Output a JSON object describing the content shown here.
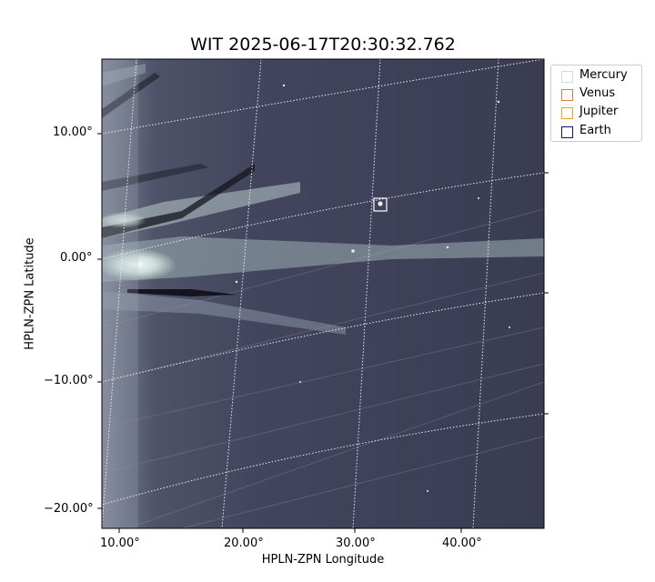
{
  "title": "WIT 2025-06-17T20:30:32.762",
  "xlabel": "HPLN-ZPN Longitude",
  "ylabel": "HPLN-ZPN Latitude",
  "x_ticks": [
    "10.00°",
    "20.00°",
    "30.00°",
    "40.00°"
  ],
  "y_ticks": [
    "10.00°",
    "0.00°",
    "−10.00°",
    "−20.00°"
  ],
  "legend": [
    {
      "label": "Mercury",
      "color": "#d9d9d9"
    },
    {
      "label": "Venus",
      "color": "#e07b39"
    },
    {
      "label": "Jupiter",
      "color": "#e6a817"
    },
    {
      "label": "Earth",
      "color": "#14146e"
    }
  ],
  "colors": {
    "sky_dark": "#3b3d55",
    "streamer_light": "#dde9e6",
    "grid": "#e8e8f0"
  }
}
